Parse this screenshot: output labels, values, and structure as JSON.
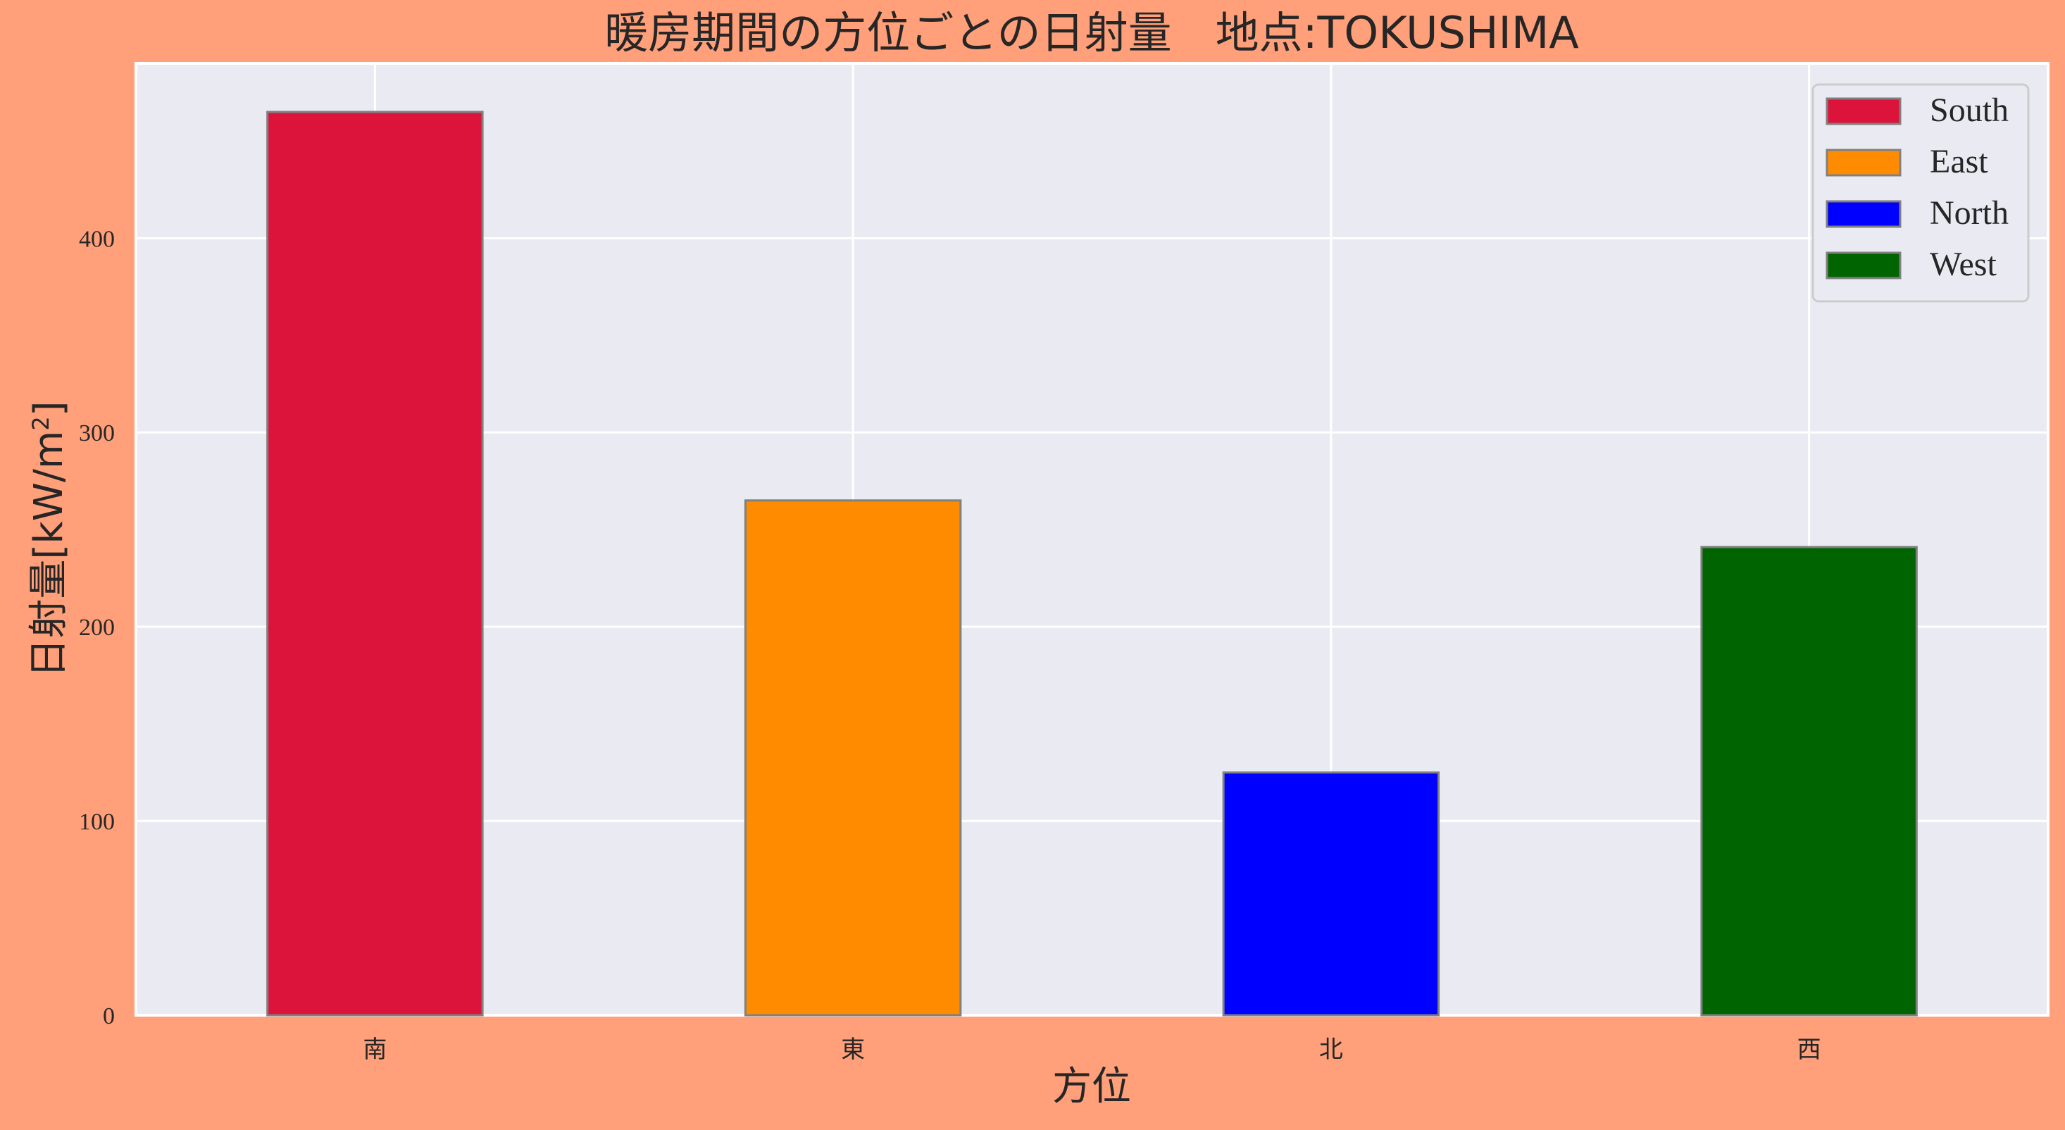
{
  "chart_data": {
    "type": "bar",
    "title": "暖房期間の方位ごとの日射量　地点:TOKUSHIMA",
    "xlabel": "方位",
    "ylabel": "日射量[kW/m²]",
    "ylabel_main": "日射量[kW/m",
    "ylabel_sup": "2",
    "ylabel_close": "]",
    "categories": [
      "南",
      "東",
      "北",
      "西"
    ],
    "values": [
      465,
      265,
      125,
      241
    ],
    "series_names": [
      "South",
      "East",
      "North",
      "West"
    ],
    "colors": [
      "#DC143C",
      "#FF8C00",
      "#0000FF",
      "#006400"
    ],
    "ylim": [
      0,
      490
    ],
    "yticks": [
      0,
      100,
      200,
      300,
      400
    ],
    "grid": true,
    "legend_position": "top-right"
  },
  "style": {
    "background": "#FFA07A",
    "plot_background": "#EAEAF2",
    "grid_color": "#FFFFFF",
    "bar_edge": "#808080"
  }
}
